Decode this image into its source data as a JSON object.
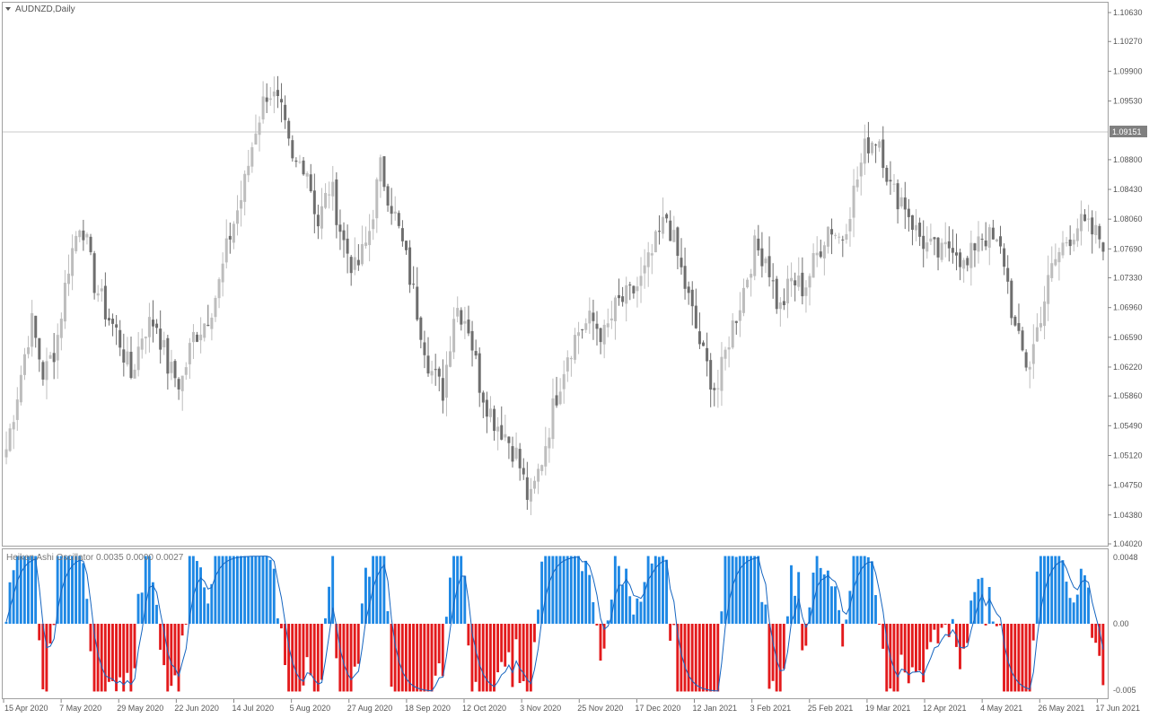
{
  "chart_window": {
    "symbol_label": "AUDNZD,Daily",
    "current_price": "1.09151",
    "price_tick_labels": [
      "1.10630",
      "1.10270",
      "1.09900",
      "1.09530",
      "1.08800",
      "1.08430",
      "1.08060",
      "1.07690",
      "1.07330",
      "1.06960",
      "1.06590",
      "1.06220",
      "1.05860",
      "1.05490",
      "1.05120",
      "1.04750",
      "1.04380",
      "1.04020"
    ],
    "oscillator_label": "Heiken Ashi Oscillator 0.0035 0.0000 0.0027",
    "oscillator_tick_labels": [
      "0.0048",
      "0.00",
      "-0.005"
    ],
    "date_labels": [
      "15 Apr 2020",
      "7 May 2020",
      "29 May 2020",
      "22 Jun 2020",
      "14 Jul 2020",
      "5 Aug 2020",
      "27 Aug 2020",
      "18 Sep 2020",
      "12 Oct 2020",
      "3 Nov 2020",
      "25 Nov 2020",
      "17 Dec 2020",
      "12 Jan 2021",
      "3 Feb 2021",
      "25 Feb 2021",
      "19 Mar 2021",
      "12 Apr 2021",
      "4 May 2021",
      "26 May 2021",
      "17 Jun 2021"
    ]
  },
  "chart_data": [
    {
      "type": "candlestick",
      "title": "AUDNZD,Daily",
      "ylim": [
        1.0402,
        1.1063
      ],
      "current_price": 1.09151,
      "up_color": "#bdbdbd",
      "down_color": "#6e6e6e",
      "grid": false,
      "anchor_closes": [
        1.052,
        1.06,
        1.068,
        1.061,
        1.065,
        1.075,
        1.081,
        1.073,
        1.069,
        1.066,
        1.061,
        1.067,
        1.068,
        1.062,
        1.06,
        1.066,
        1.068,
        1.072,
        1.079,
        1.084,
        1.092,
        1.097,
        1.094,
        1.087,
        1.088,
        1.08,
        1.085,
        1.078,
        1.074,
        1.078,
        1.087,
        1.082,
        1.076,
        1.069,
        1.062,
        1.059,
        1.07,
        1.068,
        1.06,
        1.056,
        1.054,
        1.051,
        1.045,
        1.051,
        1.058,
        1.064,
        1.067,
        1.068,
        1.066,
        1.07,
        1.071,
        1.073,
        1.077,
        1.081,
        1.075,
        1.069,
        1.063,
        1.059,
        1.066,
        1.071,
        1.077,
        1.076,
        1.069,
        1.073,
        1.072,
        1.076,
        1.08,
        1.078,
        1.084,
        1.09,
        1.091,
        1.084,
        1.083,
        1.079,
        1.077,
        1.076,
        1.078,
        1.074,
        1.079,
        1.078,
        1.076,
        1.066,
        1.062,
        1.069,
        1.075,
        1.078,
        1.08,
        1.079,
        1.078
      ]
    },
    {
      "type": "histogram",
      "title": "Heiken Ashi Oscillator 0.0035 0.0000 0.0027",
      "ylim": [
        -0.0052,
        0.005
      ],
      "positive_color": "#1e88e5",
      "negative_color": "#e31a1c",
      "signal_color": "#1565c0",
      "grid": false
    }
  ]
}
